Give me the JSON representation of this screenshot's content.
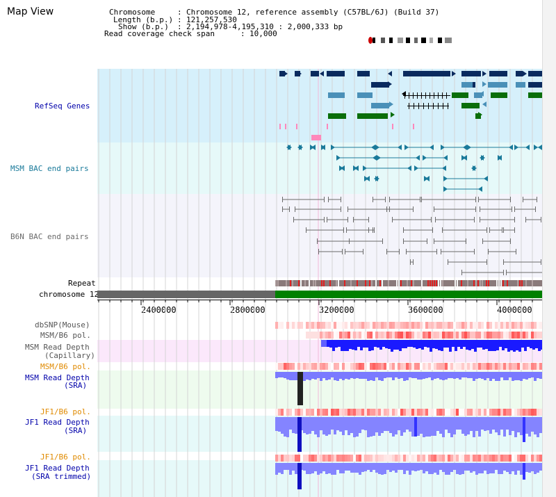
{
  "title": "Map View",
  "info": {
    "chromosome_key": "Chromosome",
    "chromosome_val": "Chromosome 12, reference assembly (C57BL/6J) (Build 37)",
    "length_key": "Length (b.p.)",
    "length_val": "121,257,530",
    "show_key": "Show (b.p.)",
    "show_val": "2,194,978-4,195,310 : 2,000,333 bp",
    "span_key": "Read coverage check span",
    "span_val": "10,000"
  },
  "tracks": {
    "refseq": "RefSeq Genes",
    "msm_bac": "MSM BAC end pairs",
    "b6n_bac": "B6N BAC end pairs",
    "repeat": "Repeat",
    "chromosome": "chromosome 12",
    "dbsnp": "dbSNP(Mouse)",
    "msm_b6_pol_1": "MSM/B6 pol.",
    "msm_depth_cap_1": "MSM Read Depth",
    "msm_depth_cap_2": "(Capillary)",
    "msm_b6_pol_2": "MSM/B6 pol.",
    "msm_depth_sra_1": "MSM Read Depth",
    "msm_depth_sra_2": "(SRA)",
    "jf1_pol_1": "JF1/B6 pol.",
    "jf1_depth_sra_1": "JF1 Read Depth",
    "jf1_depth_sra_2": "(SRA)",
    "jf1_pol_2": "JF1/B6 pol.",
    "jf1_depth_trim_1": "JF1 Read Depth",
    "jf1_depth_trim_2": "(SRA trimmed)"
  },
  "ruler": {
    "ticks": [
      "2400000",
      "2800000",
      "3200000",
      "3600000",
      "4000000"
    ]
  },
  "colors": {
    "refseq_bg": "#d6f0fb",
    "bac_bg": "#e6f9f9",
    "b6n_bg": "#f4f4fb",
    "gene_dark": "#0a2a5e",
    "gene_mid": "#4a90b8",
    "gene_green": "#0a6e0a",
    "msm_bac": "#1a7a9a",
    "b6n_bac": "#6a6a6a",
    "chrom_green": "#008000",
    "chrom_gray": "#666666",
    "depth_blue": "#3333ff",
    "depth_light": "#8080ff",
    "label_blue": "#0000aa",
    "label_orange": "#e08a00"
  }
}
